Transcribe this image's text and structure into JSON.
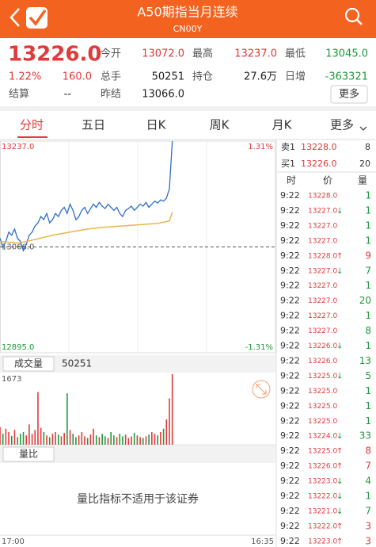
{
  "header": {
    "title": "A50期指当月连续",
    "subtitle": "CN00Y"
  },
  "quote": {
    "price": "13226.0",
    "change_pct": "1.22%",
    "change": "160.0",
    "fields": [
      {
        "label": "今开",
        "value": "13072.0",
        "color": "#e03a3a"
      },
      {
        "label": "最高",
        "value": "13237.0",
        "color": "#e03a3a"
      },
      {
        "label": "最低",
        "value": "13045.0",
        "color": "#1e9a3a"
      },
      {
        "label": "总手",
        "value": "50251",
        "color": "#222222"
      },
      {
        "label": "持仓",
        "value": "27.6万",
        "color": "#222222"
      },
      {
        "label": "日增",
        "value": "-363321",
        "color": "#1e9a3a"
      },
      {
        "label": "结算",
        "value": "--",
        "color": "#222222"
      },
      {
        "label": "昨结",
        "value": "13066.0",
        "color": "#222222"
      }
    ],
    "more": "更多"
  },
  "tabs": [
    "分时",
    "五日",
    "日K",
    "周K",
    "月K",
    "更多"
  ],
  "chart_data": [
    {
      "type": "line",
      "xlim": [
        0,
        1415
      ],
      "xticks": [
        {
          "value": 0,
          "label": "17:00"
        },
        {
          "value": 1415,
          "label": "16:35"
        }
      ],
      "ylim": [
        12895,
        13237
      ],
      "yticks": [
        {
          "value": 13237,
          "label": "13237.0"
        },
        {
          "value": 13066,
          "label": "13066.0"
        },
        {
          "value": 12895,
          "label": "12895.0"
        }
      ],
      "y2lim": [
        -1.31,
        1.31
      ],
      "y2ticks": [
        {
          "value": 1.31,
          "label": "1.31%"
        },
        {
          "value": -1.31,
          "label": "-1.31%"
        }
      ],
      "series": [
        {
          "color": "#2f6fc7",
          "x": [
            0,
            15,
            30,
            45,
            60,
            75,
            90,
            105,
            120,
            135,
            150,
            165,
            180,
            195,
            210,
            225,
            240,
            255,
            270,
            285,
            300,
            315,
            330,
            345,
            360,
            375,
            390,
            405,
            420,
            435,
            450,
            465,
            480,
            495,
            510,
            525,
            540,
            555,
            570,
            585,
            600,
            615,
            630,
            645,
            660,
            675,
            690,
            705,
            720,
            735,
            750,
            765,
            780,
            795,
            810,
            825,
            840,
            855,
            870,
            885
          ],
          "values": [
            13080,
            13065,
            13075,
            13090,
            13085,
            13095,
            13080,
            13075,
            13060,
            13070,
            13085,
            13090,
            13100,
            13105,
            13115,
            13110,
            13120,
            13105,
            13110,
            13120,
            13115,
            13125,
            13130,
            13120,
            13135,
            13125,
            13110,
            13115,
            13125,
            13130,
            13120,
            13128,
            13135,
            13130,
            13138,
            13132,
            13128,
            13135,
            13130,
            13125,
            13130,
            13120,
            13115,
            13125,
            13128,
            13132,
            13125,
            13130,
            13135,
            13132,
            13138,
            13130,
            13135,
            13140,
            13137,
            13142,
            13140,
            13145,
            13160,
            13237
          ]
        },
        {
          "color": "#e8b64c",
          "x": [
            0,
            90,
            180,
            270,
            360,
            450,
            540,
            630,
            720,
            810,
            870,
            885
          ],
          "values": [
            13075,
            13072,
            13078,
            13085,
            13090,
            13095,
            13098,
            13100,
            13102,
            13104,
            13108,
            13122
          ]
        }
      ]
    },
    {
      "type": "bar",
      "ylim": [
        0,
        1673
      ],
      "yticks": [
        1673
      ],
      "values": [
        420,
        260,
        380,
        300,
        210,
        350,
        180,
        260,
        300,
        220,
        480,
        260,
        350,
        1250,
        400,
        300,
        220,
        180,
        260,
        300,
        240,
        200,
        280,
        1220,
        350,
        260,
        180,
        220,
        300,
        200,
        160,
        240,
        380,
        220,
        180,
        260,
        200,
        160,
        300,
        220,
        180,
        260,
        200,
        240,
        160,
        200,
        280,
        220,
        180,
        160,
        200,
        240,
        300,
        260,
        220,
        300,
        380,
        600,
        1100,
        1673
      ]
    }
  ],
  "volume_label": "成交量",
  "volume_total": "50251",
  "ratio_label": "量比",
  "ratio_message": "量比指标不适用于该证券",
  "order_book": [
    {
      "label": "卖1",
      "price": "13228.0",
      "volume": "8"
    },
    {
      "label": "买1",
      "price": "13226.0",
      "volume": "20"
    }
  ],
  "ticks": {
    "headers": [
      "时",
      "价",
      "量"
    ],
    "rows": [
      {
        "time": "9:22",
        "price": "13228.0",
        "volume": "1",
        "color": "#1e9a3a"
      },
      {
        "time": "9:22",
        "price": "13227.0",
        "arrow": "↓",
        "volume": "1",
        "color": "#1e9a3a"
      },
      {
        "time": "9:22",
        "price": "13227.0",
        "volume": "1",
        "color": "#1e9a3a"
      },
      {
        "time": "9:22",
        "price": "13227.0",
        "volume": "1",
        "color": "#1e9a3a"
      },
      {
        "time": "9:22",
        "price": "13228.0",
        "arrow": "↑",
        "volume": "9",
        "color": "#e03a3a"
      },
      {
        "time": "9:22",
        "price": "13227.0",
        "arrow": "↓",
        "volume": "7",
        "color": "#1e9a3a"
      },
      {
        "time": "9:22",
        "price": "13227.0",
        "volume": "1",
        "color": "#1e9a3a"
      },
      {
        "time": "9:22",
        "price": "13227.0",
        "volume": "20",
        "color": "#1e9a3a"
      },
      {
        "time": "9:22",
        "price": "13227.0",
        "volume": "1",
        "color": "#1e9a3a"
      },
      {
        "time": "9:22",
        "price": "13227.0",
        "volume": "8",
        "color": "#1e9a3a"
      },
      {
        "time": "9:22",
        "price": "13226.0",
        "arrow": "↓",
        "volume": "1",
        "color": "#1e9a3a"
      },
      {
        "time": "9:22",
        "price": "13226.0",
        "volume": "13",
        "color": "#1e9a3a"
      },
      {
        "time": "9:22",
        "price": "13225.0",
        "arrow": "↓",
        "volume": "5",
        "color": "#1e9a3a"
      },
      {
        "time": "9:22",
        "price": "13225.0",
        "volume": "1",
        "color": "#1e9a3a"
      },
      {
        "time": "9:22",
        "price": "13225.0",
        "volume": "1",
        "color": "#1e9a3a"
      },
      {
        "time": "9:22",
        "price": "13225.0",
        "volume": "1",
        "color": "#1e9a3a"
      },
      {
        "time": "9:22",
        "price": "13224.0",
        "arrow": "↓",
        "volume": "33",
        "color": "#1e9a3a"
      },
      {
        "time": "9:22",
        "price": "13225.0",
        "arrow": "↑",
        "volume": "8",
        "color": "#e03a3a"
      },
      {
        "time": "9:22",
        "price": "13226.0",
        "arrow": "↑",
        "volume": "7",
        "color": "#e03a3a"
      },
      {
        "time": "9:22",
        "price": "13223.0",
        "arrow": "↓",
        "volume": "4",
        "color": "#1e9a3a"
      },
      {
        "time": "9:22",
        "price": "13222.0",
        "arrow": "↓",
        "volume": "1",
        "color": "#1e9a3a"
      },
      {
        "time": "9:22",
        "price": "13221.0",
        "arrow": "↓",
        "volume": "7",
        "color": "#1e9a3a"
      },
      {
        "time": "9:22",
        "price": "13222.0",
        "arrow": "↑",
        "volume": "3",
        "color": "#e03a3a"
      },
      {
        "time": "9:22",
        "price": "13223.0",
        "arrow": "↑",
        "volume": "3",
        "color": "#e03a3a"
      }
    ]
  }
}
